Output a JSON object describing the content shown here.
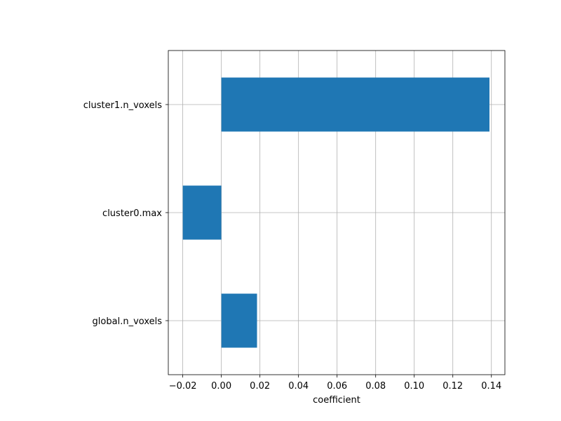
{
  "chart_data": {
    "type": "bar",
    "orientation": "horizontal",
    "categories": [
      "global.n_voxels",
      "cluster0.max",
      "cluster1.n_voxels"
    ],
    "values": [
      0.0185,
      -0.02,
      0.139
    ],
    "xlabel": "coefficient",
    "ylabel": "",
    "title": "",
    "xlim": [
      -0.0275,
      0.147
    ],
    "xticks": [
      -0.02,
      0.0,
      0.02,
      0.04,
      0.06,
      0.08,
      0.1,
      0.12,
      0.14
    ],
    "xtick_labels": [
      "−0.02",
      "0.00",
      "0.02",
      "0.04",
      "0.06",
      "0.08",
      "0.10",
      "0.12",
      "0.14"
    ],
    "grid": true,
    "bar_color": "#1f77b4",
    "grid_color": "#b0b0b0"
  }
}
